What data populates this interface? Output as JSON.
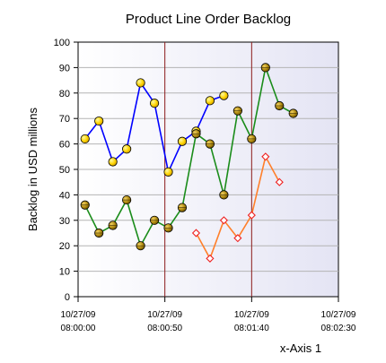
{
  "chart_data": {
    "type": "line",
    "title": "Product Line Order Backlog",
    "xlabel": "x-Axis 1",
    "ylabel": "Backlog in USD millions",
    "ylim": [
      0,
      100
    ],
    "yticks": [
      0,
      10,
      20,
      30,
      40,
      50,
      60,
      70,
      80,
      90,
      100
    ],
    "xlim": [
      "10/27/09 08:00:00",
      "10/27/09 08:02:30"
    ],
    "xticks": [
      {
        "date": "10/27/09",
        "time": "08:00:00",
        "value": "10/27/09 08:00:00"
      },
      {
        "date": "10/27/09",
        "time": "08:00:50",
        "value": "10/27/09 08:00:50"
      },
      {
        "date": "10/27/09",
        "time": "08:01:40",
        "value": "10/27/09 08:01:40"
      },
      {
        "date": "10/27/09",
        "time": "08:02:30",
        "value": "10/27/09 08:02:30"
      }
    ],
    "vertical_markers": [
      "10/27/09 08:00:50",
      "10/27/09 08:01:40"
    ],
    "marker_color": "#8b1a1a",
    "grid": true,
    "series": [
      {
        "color": "#0000ff",
        "marker": "circle-yellow",
        "points": [
          {
            "x": "10/27/09 08:00:04",
            "y": 62
          },
          {
            "x": "10/27/09 08:00:12",
            "y": 69
          },
          {
            "x": "10/27/09 08:00:20",
            "y": 53
          },
          {
            "x": "10/27/09 08:00:28",
            "y": 58
          },
          {
            "x": "10/27/09 08:00:36",
            "y": 84
          },
          {
            "x": "10/27/09 08:00:44",
            "y": 76
          },
          {
            "x": "10/27/09 08:00:52",
            "y": 49
          },
          {
            "x": "10/27/09 08:01:00",
            "y": 61
          },
          {
            "x": "10/27/09 08:01:08",
            "y": 65
          },
          {
            "x": "10/27/09 08:01:16",
            "y": 77
          },
          {
            "x": "10/27/09 08:01:24",
            "y": 79
          }
        ]
      },
      {
        "color": "#1a8c1a",
        "marker": "circle-olive",
        "points": [
          {
            "x": "10/27/09 08:00:04",
            "y": 36
          },
          {
            "x": "10/27/09 08:00:12",
            "y": 25
          },
          {
            "x": "10/27/09 08:00:20",
            "y": 28
          },
          {
            "x": "10/27/09 08:00:28",
            "y": 38
          },
          {
            "x": "10/27/09 08:00:36",
            "y": 20
          },
          {
            "x": "10/27/09 08:00:44",
            "y": 30
          },
          {
            "x": "10/27/09 08:00:52",
            "y": 27
          },
          {
            "x": "10/27/09 08:01:00",
            "y": 35
          },
          {
            "x": "10/27/09 08:01:08",
            "y": 64
          },
          {
            "x": "10/27/09 08:01:16",
            "y": 60
          },
          {
            "x": "10/27/09 08:01:24",
            "y": 40
          },
          {
            "x": "10/27/09 08:01:32",
            "y": 73
          },
          {
            "x": "10/27/09 08:01:40",
            "y": 62
          },
          {
            "x": "10/27/09 08:01:48",
            "y": 90
          },
          {
            "x": "10/27/09 08:01:56",
            "y": 75
          },
          {
            "x": "10/27/09 08:02:04",
            "y": 72
          }
        ]
      },
      {
        "color": "#ff7f2a",
        "marker": "diamond-red",
        "points": [
          {
            "x": "10/27/09 08:01:08",
            "y": 25
          },
          {
            "x": "10/27/09 08:01:16",
            "y": 15
          },
          {
            "x": "10/27/09 08:01:24",
            "y": 30
          },
          {
            "x": "10/27/09 08:01:32",
            "y": 23
          },
          {
            "x": "10/27/09 08:01:40",
            "y": 32
          },
          {
            "x": "10/27/09 08:01:48",
            "y": 55
          },
          {
            "x": "10/27/09 08:01:56",
            "y": 45
          }
        ]
      }
    ]
  }
}
